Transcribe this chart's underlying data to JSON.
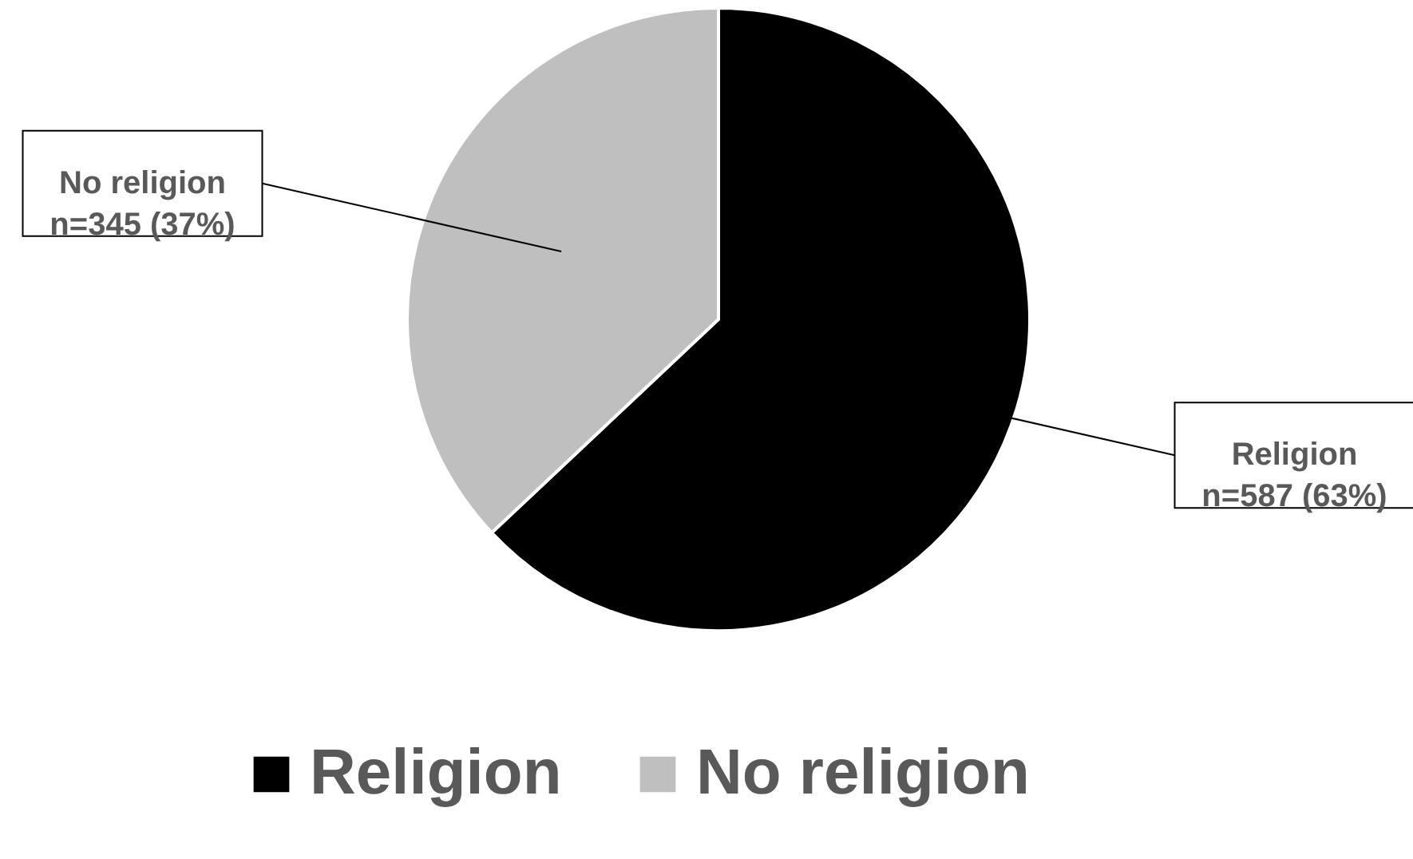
{
  "chart_data": {
    "type": "pie",
    "categories": [
      "Religion",
      "No religion"
    ],
    "values": [
      587,
      345
    ],
    "colors": [
      "#000000",
      "#bfbfbf"
    ],
    "value_labels": [
      "n=587 (63%)",
      "n=345 (37%)"
    ],
    "legend": "bottom"
  }
}
